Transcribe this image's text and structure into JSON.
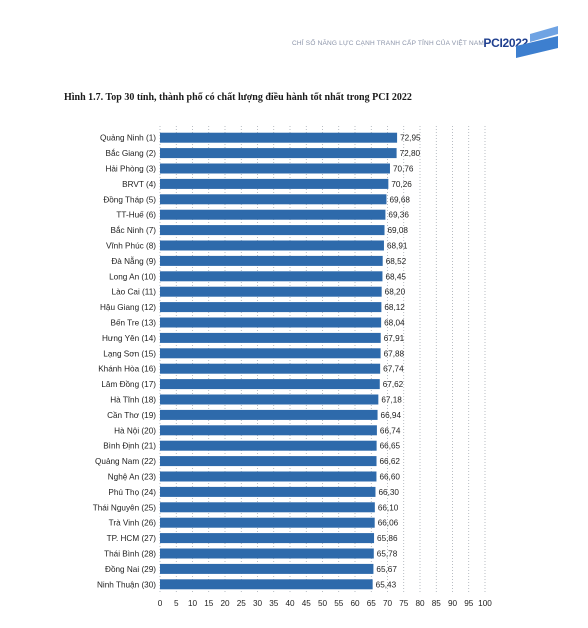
{
  "header": {
    "text": "CHỈ SỐ NĂNG LỰC CẠNH TRANH CẤP TỈNH CỦA VIỆT NAM",
    "brand": "PCI2022"
  },
  "colors": {
    "bar": "#2e6aab",
    "grid": "#9aa0aa",
    "brand": "#1f3f8f",
    "logo": "#3d7fcf"
  },
  "chart_data": {
    "type": "bar",
    "orientation": "horizontal",
    "title": "Hình 1.7. Top 30 tỉnh, thành phố có chất lượng điều hành tốt nhất trong PCI 2022",
    "xlim": [
      0,
      100
    ],
    "xticks": [
      0,
      5,
      10,
      15,
      20,
      25,
      30,
      35,
      40,
      45,
      50,
      55,
      60,
      65,
      70,
      75,
      80,
      85,
      90,
      95,
      100
    ],
    "grid": "vertical dotted",
    "categories": [
      "Quảng Ninh (1)",
      "Bắc Giang (2)",
      "Hải Phòng (3)",
      "BRVT (4)",
      "Đồng Tháp (5)",
      "TT-Huế (6)",
      "Bắc Ninh (7)",
      "Vĩnh Phúc (8)",
      "Đà Nẵng (9)",
      "Long An (10)",
      "Lào Cai (11)",
      "Hậu Giang (12)",
      "Bến Tre (13)",
      "Hưng Yên (14)",
      "Lạng Sơn (15)",
      "Khánh Hòa (16)",
      "Lâm Đồng (17)",
      "Hà Tĩnh (18)",
      "Cần Thơ (19)",
      "Hà Nội (20)",
      "Bình Định (21)",
      "Quảng Nam (22)",
      "Nghệ An (23)",
      "Phú Thọ (24)",
      "Thái Nguyên (25)",
      "Trà Vinh (26)",
      "TP. HCM (27)",
      "Thái Bình (28)",
      "Đồng Nai (29)",
      "Ninh Thuận (30)"
    ],
    "values": [
      72.95,
      72.8,
      70.76,
      70.26,
      69.68,
      69.36,
      69.08,
      68.91,
      68.52,
      68.45,
      68.2,
      68.12,
      68.04,
      67.91,
      67.88,
      67.74,
      67.62,
      67.18,
      66.94,
      66.74,
      66.65,
      66.62,
      66.6,
      66.3,
      66.1,
      66.06,
      65.86,
      65.78,
      65.67,
      65.43
    ],
    "labels": [
      "72,95",
      "72,80",
      "70,76",
      "70,26",
      "69,68",
      "69,36",
      "69,08",
      "68,91",
      "68,52",
      "68,45",
      "68,20",
      "68,12",
      "68,04",
      "67,91",
      "67,88",
      "67,74",
      "67,62",
      "67,18",
      "66,94",
      "66,74",
      "66,65",
      "66,62",
      "66,60",
      "66,30",
      "66,10",
      "66,06",
      "65,86",
      "65,78",
      "65,67",
      "65,43"
    ]
  }
}
